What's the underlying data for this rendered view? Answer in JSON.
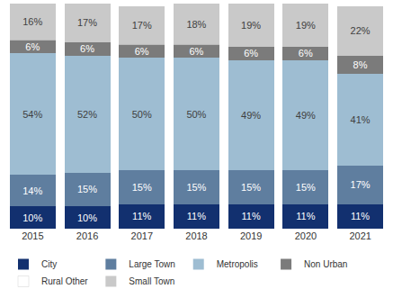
{
  "chart_data": {
    "type": "bar",
    "stacked": true,
    "data_labels": true,
    "tick_labels": "x",
    "grid": false,
    "legend": "bottom",
    "categories": [
      "2015",
      "2016",
      "2017",
      "2018",
      "2019",
      "2020",
      "2021"
    ],
    "ylim": [
      0,
      100
    ],
    "series": [
      {
        "name": "City",
        "color": "#12306f",
        "values": [
          10,
          10,
          11,
          11,
          11,
          11,
          11
        ],
        "value_labels": [
          "10%",
          "10%",
          "11%",
          "11%",
          "11%",
          "11%",
          "11%"
        ]
      },
      {
        "name": "Large Town",
        "color": "#5f7e9f",
        "values": [
          14,
          15,
          15,
          15,
          15,
          15,
          17
        ],
        "value_labels": [
          "14%",
          "15%",
          "15%",
          "15%",
          "15%",
          "15%",
          "17%"
        ]
      },
      {
        "name": "Metropolis",
        "color": "#9ebdd2",
        "values": [
          54,
          52,
          50,
          50,
          49,
          49,
          41
        ],
        "value_labels": [
          "54%",
          "52%",
          "50%",
          "50%",
          "49%",
          "49%",
          "41%"
        ]
      },
      {
        "name": "Non Urban",
        "color": "#7b7b7b",
        "values": [
          6,
          6,
          6,
          6,
          6,
          6,
          8
        ],
        "value_labels": [
          "6%",
          "6%",
          "6%",
          "6%",
          "6%",
          "6%",
          "8%"
        ]
      },
      {
        "name": "Rural Other",
        "color": "#ffffff",
        "values": [
          0,
          0,
          0,
          0,
          0,
          0,
          0
        ],
        "value_labels": [
          null,
          null,
          null,
          null,
          null,
          null,
          null
        ]
      },
      {
        "name": "Small Town",
        "color": "#c9c9c9",
        "values": [
          16,
          17,
          17,
          18,
          19,
          19,
          22
        ],
        "value_labels": [
          "16%",
          "17%",
          "17%",
          "18%",
          "19%",
          "19%",
          "22%"
        ]
      }
    ]
  }
}
